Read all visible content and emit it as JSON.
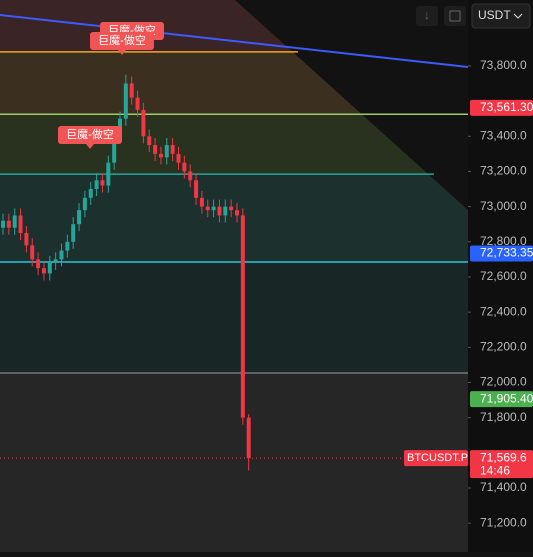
{
  "toolbar": {
    "currency": "USDT"
  },
  "chart_data": {
    "type": "candlestick",
    "open": [
      72880,
      72920,
      72880,
      72950,
      72850,
      72780,
      72700,
      72650,
      72620,
      72680,
      72700,
      72750,
      72800,
      72900,
      72980,
      73050,
      73100,
      73150,
      73120,
      73250,
      73400,
      73500,
      73700,
      73620,
      73550,
      73400,
      73350,
      73300,
      73280,
      73350,
      73300,
      73250,
      73200,
      73150,
      73050,
      73000,
      72980,
      73000,
      72950,
      73000,
      72980,
      72950,
      71800
    ],
    "high": [
      72960,
      72960,
      72990,
      72990,
      72890,
      72820,
      72740,
      72690,
      72720,
      72740,
      72790,
      72840,
      72940,
      73020,
      73090,
      73140,
      73190,
      73190,
      73290,
      73440,
      73540,
      73750,
      73740,
      73660,
      73590,
      73440,
      73390,
      73340,
      73390,
      73390,
      73340,
      73290,
      73240,
      73190,
      73090,
      73040,
      73040,
      73040,
      73040,
      73040,
      73020,
      72990,
      71820
    ],
    "low": [
      72840,
      72840,
      72840,
      72810,
      72740,
      72660,
      72610,
      72580,
      72580,
      72640,
      72660,
      72710,
      72760,
      72860,
      72940,
      73010,
      73060,
      73080,
      73080,
      73210,
      73360,
      73460,
      73580,
      73510,
      73360,
      73310,
      73260,
      73240,
      73240,
      73260,
      73210,
      73160,
      73110,
      73010,
      72960,
      72940,
      72940,
      72910,
      72910,
      72940,
      72910,
      71760,
      71500
    ],
    "close": [
      72920,
      72880,
      72950,
      72850,
      72780,
      72700,
      72650,
      72620,
      72680,
      72700,
      72750,
      72800,
      72900,
      72980,
      73050,
      73100,
      73150,
      73120,
      73250,
      73400,
      73500,
      73700,
      73620,
      73550,
      73400,
      73350,
      73300,
      73280,
      73350,
      73300,
      73250,
      73200,
      73150,
      73050,
      73000,
      72980,
      73000,
      72950,
      73000,
      72980,
      72950,
      71800,
      71570
    ],
    "up_color": "#26a69a",
    "down_color": "#f23645",
    "ylim": [
      71036,
      74175
    ],
    "yticks": [
      {
        "value": 73800,
        "label": "73,800.0"
      },
      {
        "value": 73400,
        "label": "73,400.0"
      },
      {
        "value": 73200,
        "label": "73,200.0"
      },
      {
        "value": 73000,
        "label": "73,000.0"
      },
      {
        "value": 72800,
        "label": "72,800.0"
      },
      {
        "value": 72600,
        "label": "72,600.0"
      },
      {
        "value": 72400,
        "label": "72,400.0"
      },
      {
        "value": 72200,
        "label": "72,200.0"
      },
      {
        "value": 72000,
        "label": "72,000.0"
      },
      {
        "value": 71800,
        "label": "71,800.0"
      },
      {
        "value": 71400,
        "label": "71,400.0"
      },
      {
        "value": 71200,
        "label": "71,200.0"
      }
    ],
    "levels": [
      {
        "value": 73880,
        "color": "#f5a623"
      },
      {
        "value": 73525,
        "color": "#9ccc65"
      },
      {
        "value": 73185,
        "color": "#26a69a"
      },
      {
        "value": 72685,
        "color": "#26c6da"
      },
      {
        "value": 72054,
        "color": "#777777"
      }
    ],
    "price_tags": [
      {
        "value": 73561.3,
        "label": "73,561.30",
        "color": "#f23645"
      },
      {
        "value": 72733.35,
        "label": "72,733.35",
        "color": "#2962ff"
      },
      {
        "value": 71905.4,
        "label": "71,905.40",
        "color": "#4caf50"
      },
      {
        "value": 71569.6,
        "label": "71,569.6",
        "color": "#f23645"
      }
    ],
    "symbol": "BTCUSDT.P",
    "countdown": "14:46",
    "annotations": [
      "巨魔-做空",
      "巨魔-做空",
      "巨魔-做空"
    ]
  }
}
